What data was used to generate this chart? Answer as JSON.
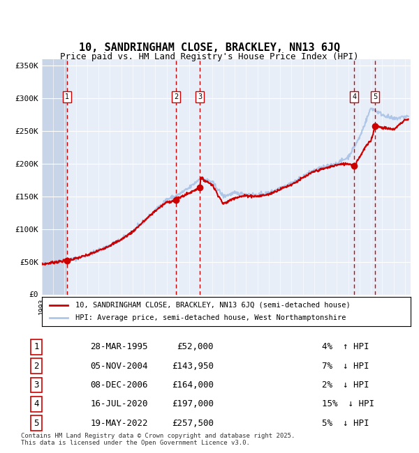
{
  "title": "10, SANDRINGHAM CLOSE, BRACKLEY, NN13 6JQ",
  "subtitle": "Price paid vs. HM Land Registry's House Price Index (HPI)",
  "legend_line1": "10, SANDRINGHAM CLOSE, BRACKLEY, NN13 6JQ (semi-detached house)",
  "legend_line2": "HPI: Average price, semi-detached house, West Northamptonshire",
  "footer": "Contains HM Land Registry data © Crown copyright and database right 2025.\nThis data is licensed under the Open Government Licence v3.0.",
  "transactions": [
    {
      "num": 1,
      "date": "28-MAR-1995",
      "price": 52000,
      "pct": "4%",
      "dir": "↑",
      "year_x": 1995.24
    },
    {
      "num": 2,
      "date": "05-NOV-2004",
      "price": 143950,
      "pct": "7%",
      "dir": "↓",
      "year_x": 2004.84
    },
    {
      "num": 3,
      "date": "08-DEC-2006",
      "price": 164000,
      "pct": "2%",
      "dir": "↓",
      "year_x": 2006.93
    },
    {
      "num": 4,
      "date": "16-JUL-2020",
      "price": 197000,
      "pct": "15%",
      "dir": "↓",
      "year_x": 2020.54
    },
    {
      "num": 5,
      "date": "19-MAY-2022",
      "price": 257500,
      "pct": "5%",
      "dir": "↓",
      "year_x": 2022.38
    }
  ],
  "hpi_color": "#aec6e8",
  "price_color": "#cc0000",
  "marker_color": "#cc0000",
  "vline_color": "#cc0000",
  "bg_color": "#e8eef8",
  "hatch_color": "#c8d4e8",
  "grid_color": "#ffffff",
  "ylim": [
    0,
    360000
  ],
  "xlim_start": 1993.0,
  "xlim_end": 2025.5,
  "hatch_end": 1995.24
}
